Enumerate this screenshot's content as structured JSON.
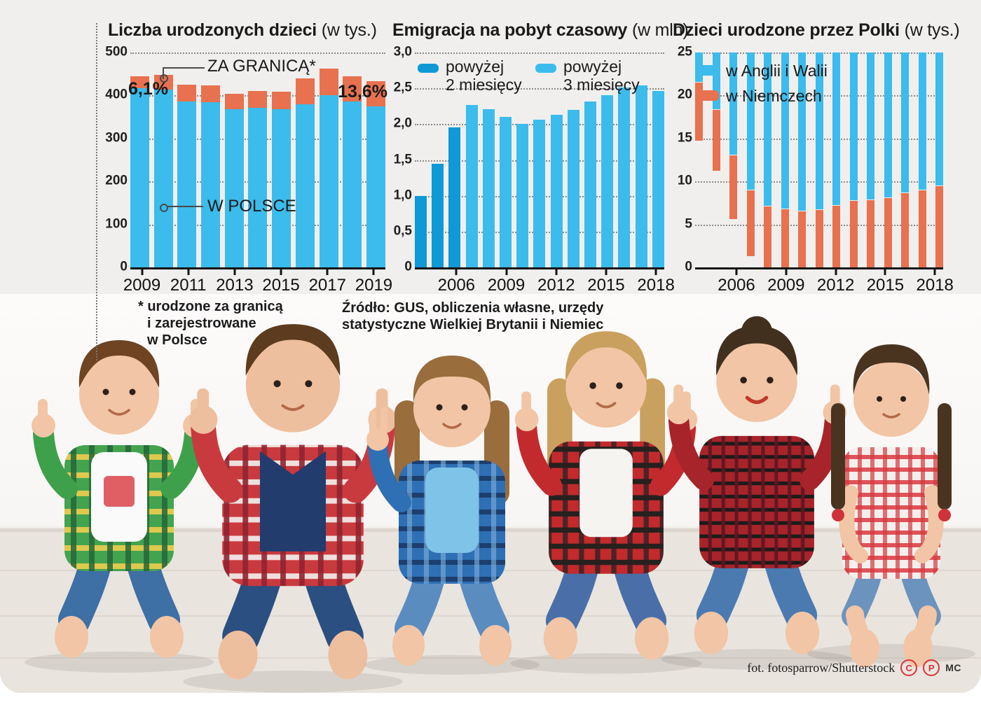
{
  "colors": {
    "bg": "#f0efed",
    "light_blue": "#3bbcec",
    "dark_blue": "#0f99d6",
    "orange": "#e8714f",
    "badge": "#d93438"
  },
  "chart_data": [
    {
      "type": "stacked-bar",
      "title": "Liczba urodzonych dzieci",
      "title_suffix": "(w tys.)",
      "ymax": 500,
      "years": [
        2009,
        2010,
        2011,
        2012,
        2013,
        2014,
        2015,
        2016,
        2017,
        2018,
        2019
      ],
      "series": [
        {
          "name": "W POLSCE",
          "color": "light_blue",
          "values": [
            417,
            413,
            386,
            384,
            368,
            372,
            368,
            379,
            400,
            386,
            375
          ]
        },
        {
          "name": "ZA GRANICĄ*",
          "color": "orange",
          "values": [
            27,
            35,
            39,
            39,
            36,
            39,
            41,
            61,
            63,
            59,
            59
          ]
        }
      ],
      "annotations": [
        {
          "text": "6,1%",
          "year": 2009
        },
        {
          "text": "13,6%",
          "year": 2019
        }
      ],
      "yticks": [
        {
          "value": 500,
          "label": "500"
        },
        {
          "value": 400,
          "label": "400"
        },
        {
          "value": 300,
          "label": "300"
        },
        {
          "value": 200,
          "label": "200"
        },
        {
          "value": 100,
          "label": "100"
        },
        {
          "value": 0,
          "label": "0"
        }
      ],
      "xticks": [
        2009,
        2011,
        2013,
        2015,
        2017,
        2019
      ],
      "legend_position": "none",
      "grid": "dotted"
    },
    {
      "type": "bar",
      "title": "Emigracja na pobyt czasowy",
      "title_suffix": "(w mln)",
      "ymax": 3,
      "years": [
        2004,
        2005,
        2006,
        2007,
        2008,
        2009,
        2010,
        2011,
        2012,
        2013,
        2014,
        2015,
        2016,
        2017,
        2018
      ],
      "values": [
        1.0,
        1.45,
        1.95,
        2.27,
        2.21,
        2.1,
        2.0,
        2.06,
        2.13,
        2.2,
        2.32,
        2.4,
        2.51,
        2.54,
        2.46
      ],
      "dark_years": [
        2004,
        2005,
        2006
      ],
      "legend": [
        {
          "line1": "powyżej",
          "line2": "2 miesięcy",
          "color": "dark_blue"
        },
        {
          "line1": "powyżej",
          "line2": "3 miesięcy",
          "color": "light_blue"
        }
      ],
      "yticks": [
        {
          "value": 3,
          "label": "3,0"
        },
        {
          "value": 2.5,
          "label": "2,5"
        },
        {
          "value": 2,
          "label": "2,0"
        },
        {
          "value": 1.5,
          "label": "1,5"
        },
        {
          "value": 1,
          "label": "1,0"
        },
        {
          "value": 0.5,
          "label": "0,5"
        },
        {
          "value": 0,
          "label": "0"
        }
      ],
      "xticks": [
        2006,
        2009,
        2012,
        2015,
        2018
      ],
      "legend_position": "top-inside",
      "grid": "dotted"
    },
    {
      "type": "grouped-bar",
      "title": "Dzieci urodzone przez Polki",
      "title_suffix": "(w tys.)",
      "ymax": 25,
      "years": [
        2004,
        2005,
        2006,
        2007,
        2008,
        2009,
        2010,
        2011,
        2012,
        2013,
        2014,
        2015,
        2016,
        2017,
        2018
      ],
      "series": [
        {
          "name": "w Anglii i Walii",
          "color": "light_blue",
          "values": [
            3.4,
            6.6,
            11.9,
            16.0,
            18.2,
            19.8,
            20.4,
            21.2,
            21.3,
            22.0,
            22.8,
            22.5,
            22.0,
            20.4,
            18.5
          ]
        },
        {
          "name": "w Niemczech",
          "color": "orange",
          "values": [
            6.8,
            7.1,
            7.4,
            7.6,
            7.2,
            7.4,
            7.2,
            7.8,
            8.6,
            9.9,
            10.5,
            10.7,
            11.6,
            11.5,
            11.3
          ]
        }
      ],
      "yticks": [
        {
          "value": 25,
          "label": "25"
        },
        {
          "value": 20,
          "label": "20"
        },
        {
          "value": 15,
          "label": "15"
        },
        {
          "value": 10,
          "label": "10"
        },
        {
          "value": 5,
          "label": "5"
        },
        {
          "value": 0,
          "label": "0"
        }
      ],
      "xticks": [
        2006,
        2009,
        2012,
        2015,
        2018
      ],
      "legend_position": "top-inside",
      "grid": "dotted"
    }
  ],
  "footnote": {
    "lines": [
      "* urodzone za granicą",
      "i zarejestrowane",
      "w Polsce"
    ]
  },
  "source": {
    "lines": [
      "Źródło: GUS, obliczenia własne,  urzędy",
      "statystyczne Wielkiej Brytanii i Niemiec"
    ]
  },
  "credit": {
    "text": "fot. fotosparrow/Shutterstock",
    "icons": [
      {
        "name": "copyright-icon",
        "glyph": "C"
      },
      {
        "name": "phonogram-icon",
        "glyph": "P"
      }
    ],
    "suffix": "MC"
  }
}
